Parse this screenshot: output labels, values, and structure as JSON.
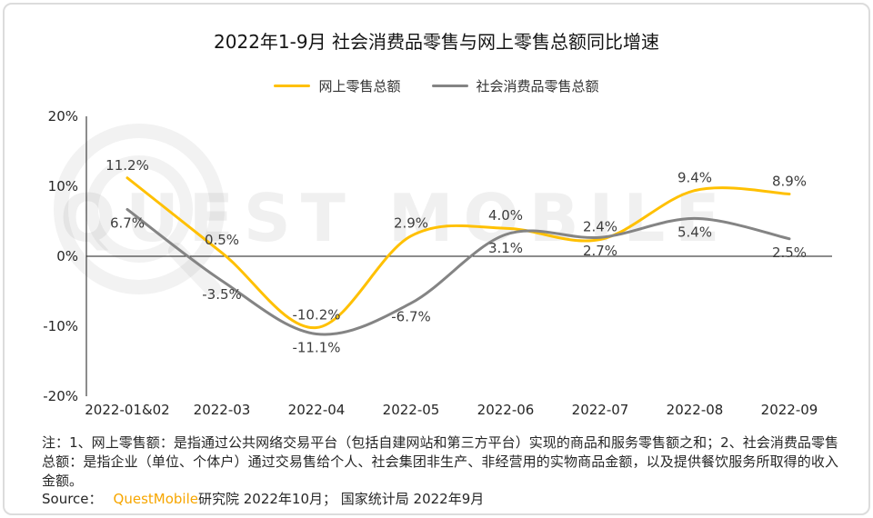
{
  "page": {
    "title": "2022年1-9月 社会消费品零售与网上零售总额同比增速",
    "watermark": "QUEST MOBILE",
    "note": "注：1、网上零售额：是指通过公共网络交易平台（包括自建网站和第三方平台）实现的商品和服务零售额之和；2、社会消费品零售总额：是指企业（单位、个体户）通过交易售给个人、社会集团非生产、非经营用的实物商品金额，以及提供餐饮服务所取得的收入金额。",
    "source_prefix": "Source：",
    "source_brand": "QuestMobile",
    "source_rest": "研究院 2022年10月； 国家统计局 2022年9月",
    "brand_color": "#F7A600"
  },
  "chart_data": {
    "type": "line",
    "title": "2022年1-9月 社会消费品零售与网上零售总额同比增速",
    "categories": [
      "2022-01&02",
      "2022-03",
      "2022-04",
      "2022-05",
      "2022-06",
      "2022-07",
      "2022-08",
      "2022-09"
    ],
    "series": [
      {
        "name": "网上零售总额",
        "color": "#FFC000",
        "values": [
          11.2,
          0.5,
          -10.2,
          2.9,
          4.0,
          2.4,
          9.4,
          8.9
        ],
        "labels": [
          "11.2%",
          "0.5%",
          "-10.2%",
          "2.9%",
          "4.0%",
          "2.4%",
          "9.4%",
          "8.9%"
        ],
        "label_position": "above"
      },
      {
        "name": "社会消费品零售总额",
        "color": "#848484",
        "values": [
          6.7,
          -3.5,
          -11.1,
          -6.7,
          3.1,
          2.7,
          5.4,
          2.5
        ],
        "labels": [
          "6.7%",
          "-3.5%",
          "-11.1%",
          "-6.7%",
          "3.1%",
          "2.7%",
          "5.4%",
          "2.5%"
        ],
        "label_position": "below"
      }
    ],
    "ylim": [
      -20,
      20
    ],
    "yticks": [
      20,
      10,
      0,
      -10,
      -20
    ],
    "ytick_labels": [
      "20%",
      "10%",
      "0%",
      "-10%",
      "-20%"
    ],
    "grid": false,
    "legend_position": "top"
  }
}
